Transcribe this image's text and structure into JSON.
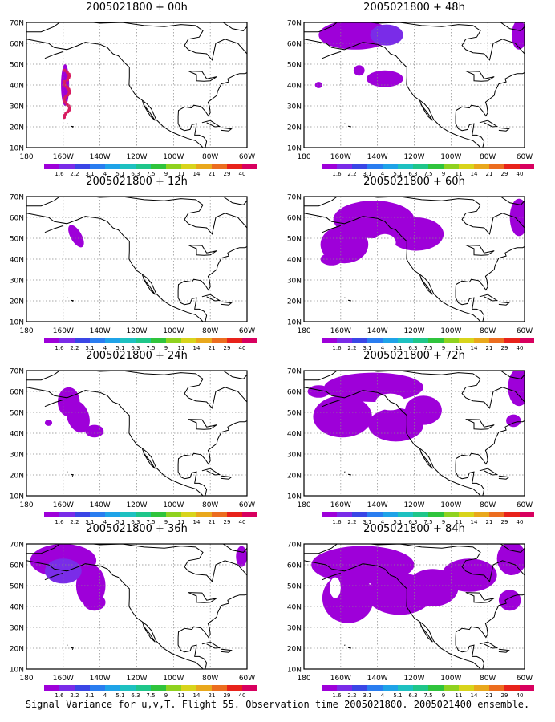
{
  "lat_labels": [
    "10N",
    "20N",
    "30N",
    "40N",
    "50N",
    "60N",
    "70N"
  ],
  "lon_labels": [
    "180",
    "160W",
    "140W",
    "120W",
    "100W",
    "80W",
    "60W"
  ],
  "colorbar": {
    "labels": [
      "1.6",
      "2.2",
      "3.1",
      "4",
      "5.1",
      "6.3",
      "7.5",
      "9",
      "11",
      "14",
      "21",
      "29",
      "40"
    ],
    "colors": [
      "#9e00d9",
      "#7a2ce8",
      "#3a46e6",
      "#2a7df0",
      "#1fa3e8",
      "#1ec1c1",
      "#1fc68a",
      "#2fc43c",
      "#8fd21f",
      "#d8d41b",
      "#e9a81c",
      "#ec6d1f",
      "#e8221b",
      "#d8005f"
    ]
  },
  "panels": [
    {
      "title": "2005021800 + 00h"
    },
    {
      "title": "2005021800 + 48h"
    },
    {
      "title": "2005021800 + 12h"
    },
    {
      "title": "2005021800 + 60h"
    },
    {
      "title": "2005021800 + 24h"
    },
    {
      "title": "2005021800 + 72h"
    },
    {
      "title": "2005021800 + 36h"
    },
    {
      "title": "2005021800 + 84h"
    }
  ],
  "footer": "Signal Variance for u,v,T. Flight 55. Observation time 2005021800. 2005021400 ensemble."
}
